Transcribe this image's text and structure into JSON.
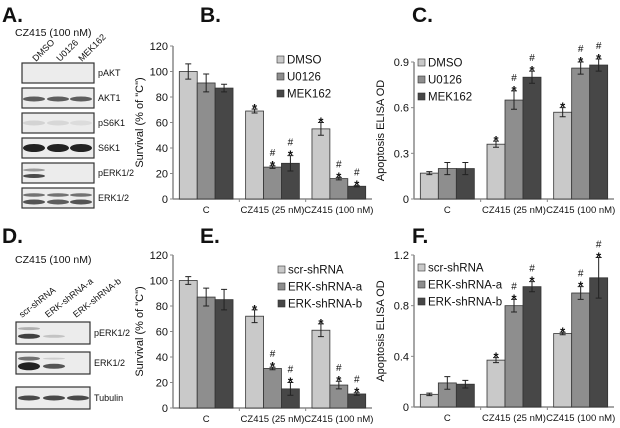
{
  "panels": {
    "A": {
      "letter": "A.",
      "header": "CZ415 (100 nM)",
      "lanes": [
        "DMSO",
        "U0126",
        "MEK162"
      ],
      "rows": [
        "pAKT",
        "AKT1",
        "pS6K1",
        "S6K1",
        "pERK1/2",
        "ERK1/2"
      ]
    },
    "B": {
      "letter": "B."
    },
    "C": {
      "letter": "C."
    },
    "D": {
      "letter": "D.",
      "header": "CZ415 (100 nM)",
      "lanes": [
        "scr-shRNA",
        "ERK-shRNA-a",
        "ERK-shRNA-b"
      ],
      "rows": [
        "pERK1/2",
        "ERK1/2",
        "Tubulin"
      ]
    },
    "E": {
      "letter": "E."
    },
    "F": {
      "letter": "F."
    }
  },
  "colors": {
    "series1": "#c9c9c9",
    "series2": "#8e8e8e",
    "series3": "#474747"
  },
  "chart_data": [
    {
      "panel": "B",
      "type": "bar",
      "categories": [
        "C",
        "CZ415 (25 nM)",
        "CZ415 (100 nM)"
      ],
      "ylabel": "Survival (% of \"C\")",
      "ylim": [
        0,
        120
      ],
      "yticks": [
        0,
        20,
        40,
        60,
        80,
        100,
        120
      ],
      "legend_position": "top-right",
      "series": [
        {
          "name": "DMSO",
          "values": [
            100,
            69,
            55
          ],
          "errors": [
            6,
            1.5,
            5
          ],
          "marks": [
            "",
            "*",
            "*"
          ]
        },
        {
          "name": "U0126",
          "values": [
            91,
            25,
            16
          ],
          "errors": [
            7,
            1,
            1
          ],
          "marks": [
            "",
            "#*",
            "#*"
          ]
        },
        {
          "name": "MEK162",
          "values": [
            87,
            28,
            10
          ],
          "errors": [
            3,
            6,
            0.5
          ],
          "marks": [
            "",
            "#*",
            "#*"
          ]
        }
      ]
    },
    {
      "panel": "C",
      "type": "bar",
      "categories": [
        "C",
        "CZ415 (25 nM)",
        "CZ415 (100 nM)"
      ],
      "ylabel": "Apoptosis ELISA OD",
      "ylim": [
        0,
        0.9
      ],
      "yticks": [
        0,
        0.3,
        0.6,
        0.9
      ],
      "legend_position": "top-left",
      "series": [
        {
          "name": "DMSO",
          "values": [
            0.17,
            0.36,
            0.57
          ],
          "errors": [
            0.01,
            0.02,
            0.03
          ],
          "marks": [
            "",
            "*",
            "*"
          ]
        },
        {
          "name": "U0126",
          "values": [
            0.2,
            0.65,
            0.86
          ],
          "errors": [
            0.04,
            0.06,
            0.04
          ],
          "marks": [
            "",
            "#*",
            "#*"
          ]
        },
        {
          "name": "MEK162",
          "values": [
            0.2,
            0.8,
            0.88
          ],
          "errors": [
            0.04,
            0.04,
            0.04
          ],
          "marks": [
            "",
            "#*",
            "#*"
          ]
        }
      ]
    },
    {
      "panel": "E",
      "type": "bar",
      "categories": [
        "C",
        "CZ415 (25 nM)",
        "CZ415 (100 nM)"
      ],
      "ylabel": "Survival (% of \"C\")",
      "ylim": [
        0,
        120
      ],
      "yticks": [
        0,
        20,
        40,
        60,
        80,
        100,
        120
      ],
      "legend_position": "top-right",
      "series": [
        {
          "name": "scr-shRNA",
          "values": [
            100,
            72,
            61
          ],
          "errors": [
            3,
            5,
            5
          ],
          "marks": [
            "",
            "*",
            "*"
          ]
        },
        {
          "name": "ERK-shRNA-a",
          "values": [
            87,
            31,
            18
          ],
          "errors": [
            7,
            1,
            3
          ],
          "marks": [
            "",
            "#*",
            "#*"
          ]
        },
        {
          "name": "ERK-shRNA-b",
          "values": [
            85,
            15,
            11
          ],
          "errors": [
            8,
            5,
            1
          ],
          "marks": [
            "",
            "#*",
            "#*"
          ]
        }
      ]
    },
    {
      "panel": "F",
      "type": "bar",
      "categories": [
        "C",
        "CZ415 (25 nM)",
        "CZ415 (100 nM)"
      ],
      "ylabel": "Apoptosis ELISA OD",
      "ylim": [
        0,
        1.2
      ],
      "yticks": [
        0,
        0.4,
        0.8,
        1.2
      ],
      "legend_position": "top-left",
      "series": [
        {
          "name": "scr-shRNA",
          "values": [
            0.1,
            0.37,
            0.58
          ],
          "errors": [
            0.01,
            0.02,
            0.01
          ],
          "marks": [
            "",
            "*",
            "*"
          ]
        },
        {
          "name": "ERK-shRNA-a",
          "values": [
            0.19,
            0.8,
            0.9
          ],
          "errors": [
            0.05,
            0.05,
            0.05
          ],
          "marks": [
            "",
            "#*",
            "#*"
          ]
        },
        {
          "name": "ERK-shRNA-b",
          "values": [
            0.18,
            0.95,
            1.02
          ],
          "errors": [
            0.03,
            0.04,
            0.16
          ],
          "marks": [
            "",
            "#*",
            "#*"
          ]
        }
      ]
    }
  ]
}
